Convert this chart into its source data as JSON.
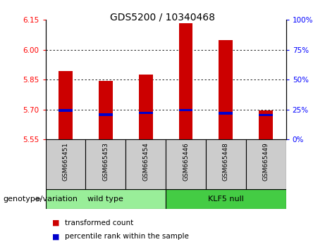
{
  "title": "GDS5200 / 10340468",
  "samples": [
    "GSM665451",
    "GSM665453",
    "GSM665454",
    "GSM665446",
    "GSM665448",
    "GSM665449"
  ],
  "transformed_counts": [
    5.895,
    5.845,
    5.875,
    6.135,
    6.05,
    5.695
  ],
  "percentile_ranks": [
    5.695,
    5.675,
    5.683,
    5.697,
    5.682,
    5.672
  ],
  "ylim": [
    5.55,
    6.15
  ],
  "yticks_left": [
    5.55,
    5.7,
    5.85,
    6.0,
    6.15
  ],
  "yticks_right_vals": [
    0,
    25,
    50,
    75,
    100
  ],
  "bar_color": "#cc0000",
  "percentile_color": "#0000cc",
  "bar_bottom": 5.55,
  "groups": [
    {
      "label": "wild type",
      "indices": [
        0,
        1,
        2
      ],
      "color": "#99ee99"
    },
    {
      "label": "KLF5 null",
      "indices": [
        3,
        4,
        5
      ],
      "color": "#44cc44"
    }
  ],
  "group_label": "genotype/variation",
  "legend_items": [
    {
      "label": "transformed count",
      "color": "#cc0000"
    },
    {
      "label": "percentile rank within the sample",
      "color": "#0000cc"
    }
  ],
  "bar_width": 0.35,
  "tick_label_fontsize": 7.5,
  "title_fontsize": 10,
  "sample_label_fontsize": 6.5,
  "group_label_fontsize": 8,
  "legend_fontsize": 7.5
}
